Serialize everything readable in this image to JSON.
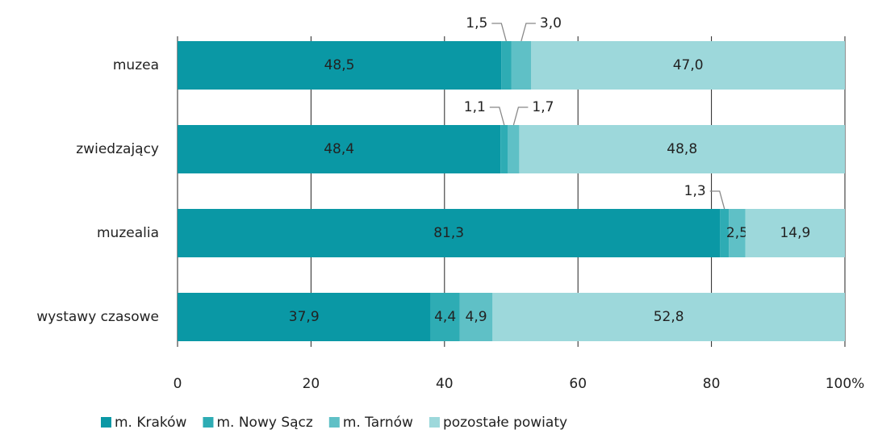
{
  "chart_data": {
    "type": "stacked-bar-horizontal",
    "categories": [
      "muzea",
      "zwiedzający",
      "muzealia",
      "wystawy czasowe"
    ],
    "series": [
      {
        "name": "m. Kraków",
        "color": "#0a98a5",
        "values": [
          48.5,
          48.4,
          81.3,
          37.9
        ],
        "value_labels": [
          "48,5",
          "48,4",
          "81,3",
          "37,9"
        ]
      },
      {
        "name": "m. Nowy Sącz",
        "color": "#2eacb4",
        "values": [
          1.5,
          1.1,
          1.3,
          4.4
        ],
        "value_labels": [
          "1,5",
          "1,1",
          "1,3",
          "4,4"
        ]
      },
      {
        "name": "m. Tarnów",
        "color": "#5fc0c6",
        "values": [
          3.0,
          1.7,
          2.5,
          4.9
        ],
        "value_labels": [
          "3,0",
          "1,7",
          "2,5",
          "4,9"
        ]
      },
      {
        "name": "pozostałe powiaty",
        "color": "#9dd8db",
        "values": [
          47.0,
          48.8,
          14.9,
          52.8
        ],
        "value_labels": [
          "47,0",
          "48,8",
          "14,9",
          "52,8"
        ]
      }
    ],
    "xlim": [
      0,
      100
    ],
    "xticks": [
      0,
      20,
      40,
      60,
      80,
      {
        "value": 100,
        "label": "100%"
      }
    ],
    "grid": true,
    "legend": "bottom"
  }
}
